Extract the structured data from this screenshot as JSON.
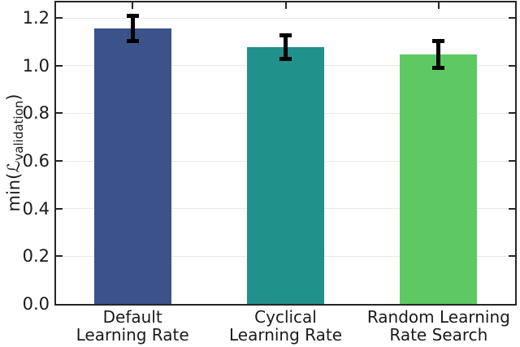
{
  "figure": {
    "ylabel_prefix": "min(",
    "ylabel_cal": "ℒ",
    "ylabel_sub": "validation",
    "ylabel_close": ")"
  },
  "chart_data": {
    "type": "bar",
    "title": "",
    "xlabel": "",
    "ylabel": "min(L_validation)",
    "categories": [
      [
        "Default",
        "Learning Rate"
      ],
      [
        "Cyclical",
        "Learning Rate"
      ],
      [
        "Random Learning",
        "Rate Search"
      ]
    ],
    "values": [
      1.155,
      1.078,
      1.048
    ],
    "errors": [
      0.053,
      0.05,
      0.056
    ],
    "bar_colors": [
      "#3b528b",
      "#21918c",
      "#5ec962"
    ],
    "error_color": "#000000",
    "ylim": [
      0,
      1.265
    ],
    "yticks": [
      0,
      0.2,
      0.4,
      0.6,
      0.8,
      1.0,
      1.2
    ],
    "yticklabels": [
      "0.0",
      "0.2",
      "0.4",
      "0.6",
      "0.8",
      "1.0",
      "1.2"
    ],
    "grid": true,
    "legend": "none",
    "grid_color": "#e7e7e7",
    "axis_color": "#262626",
    "text_color": "#1a1a1a",
    "background": "#ffffff"
  }
}
